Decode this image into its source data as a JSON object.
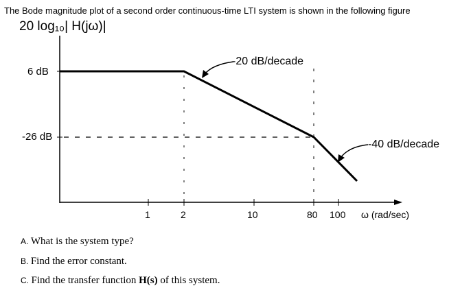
{
  "header": "The Bode magnitude plot of a second order continuous-time LTI system is shown in the following figure",
  "plot": {
    "ylabel": "20 log₁₀| H(jω)|",
    "xlabel": "ω (rad/sec)",
    "y_marks": [
      "6 dB",
      "-26 dB"
    ],
    "x_ticks": [
      "1",
      "2",
      "10",
      "80",
      "100"
    ],
    "annotations": {
      "slope1": "-20 dB/decade",
      "slope2": "-40 dB/decade"
    }
  },
  "questions": [
    {
      "letter": "A.",
      "text": "What is the system  type?"
    },
    {
      "letter": "B.",
      "text": "Find the error constant."
    },
    {
      "letter": "C.",
      "text_before": "Find the transfer function ",
      "bold": "H(s)",
      "text_after": " of this system."
    }
  ]
}
